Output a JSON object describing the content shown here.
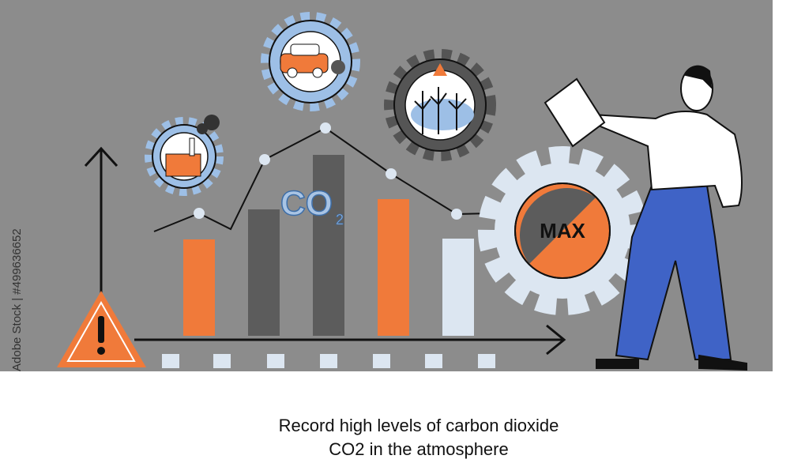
{
  "watermark": "Adobe Stock | #499636652",
  "co2": {
    "main": "CO",
    "sub": "2"
  },
  "badge": "MAX",
  "caption": {
    "line1": "Record high levels of carbon dioxide",
    "line2": "CO2 in the atmosphere"
  }
}
